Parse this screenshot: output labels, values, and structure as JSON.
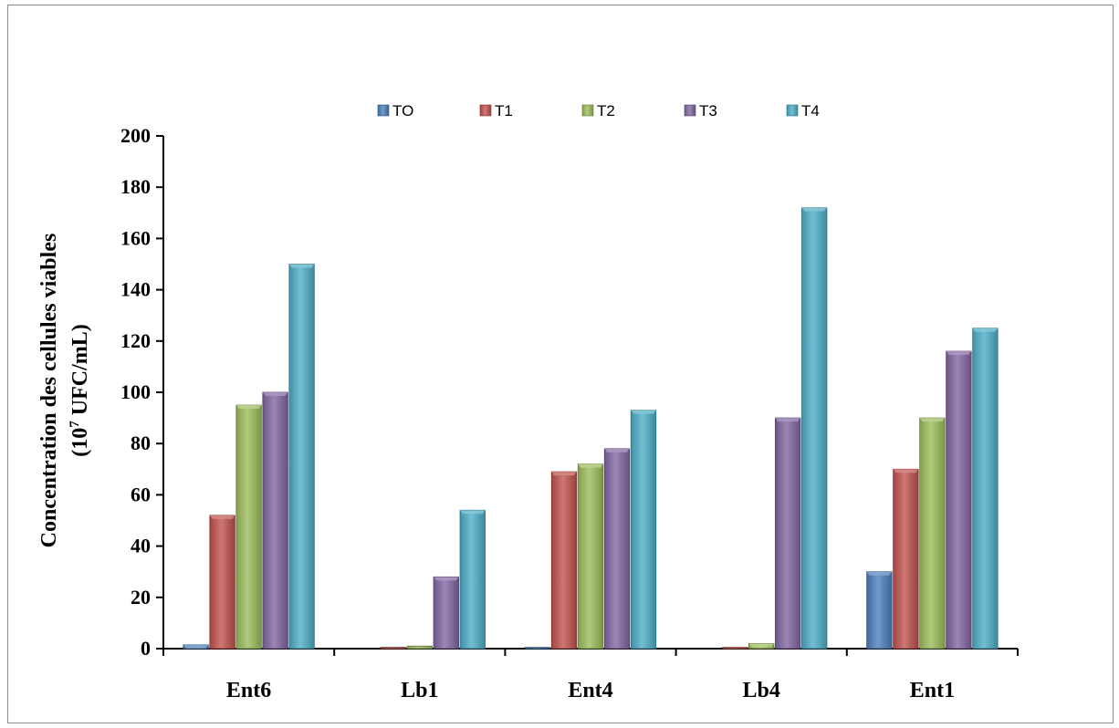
{
  "chart_data": {
    "type": "bar",
    "title": "",
    "xlabel": "",
    "ylabel_line1": "Concentration des cellules viables",
    "ylabel_line2_prefix": "(10",
    "ylabel_line2_sup": "7",
    "ylabel_line2_suffix": " UFC/mL)",
    "ylim": [
      0,
      200
    ],
    "yticks": [
      0,
      20,
      40,
      60,
      80,
      100,
      120,
      140,
      160,
      180,
      200
    ],
    "grid": false,
    "legend_position": "top",
    "categories": [
      "Ent6",
      "Lb1",
      "Ent4",
      "Lb4",
      "Ent1"
    ],
    "series": [
      {
        "name": "TO",
        "color": "#4a7ebb",
        "values": [
          1.5,
          0,
          0.5,
          0,
          30
        ]
      },
      {
        "name": "T1",
        "color": "#c0504d",
        "values": [
          52,
          0.5,
          69,
          0.5,
          70
        ]
      },
      {
        "name": "T2",
        "color": "#9bbb59",
        "values": [
          95,
          1,
          72,
          2,
          90
        ]
      },
      {
        "name": "T3",
        "color": "#8064a2",
        "values": [
          100,
          28,
          78,
          90,
          116
        ]
      },
      {
        "name": "T4",
        "color": "#4bacc6",
        "values": [
          150,
          54,
          93,
          172,
          125
        ]
      }
    ]
  }
}
